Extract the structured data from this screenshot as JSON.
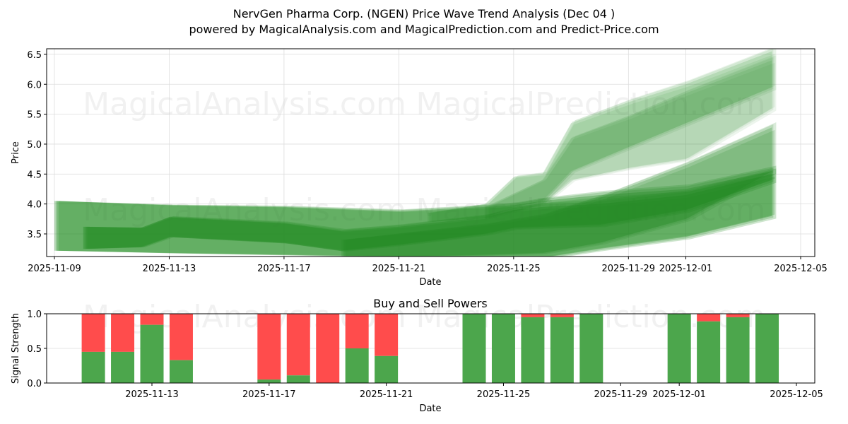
{
  "header": {
    "title": "NervGen Pharma Corp. (NGEN) Price Wave Trend Analysis (Dec 04 )",
    "subtitle": "powered by MagicalAnalysis.com and MagicalPrediction.com and Predict-Price.com"
  },
  "watermarks": [
    "MagicalAnalysis.com",
    "MagicalPrediction.com"
  ],
  "colors": {
    "wave": "#228B22",
    "buy": "#4CA64C",
    "sell": "#FF4C4C",
    "grid": "#dddddd"
  },
  "chart_data": [
    {
      "type": "area",
      "title": "NervGen Pharma Corp. (NGEN) Price Wave Trend Analysis (Dec 04 )",
      "xlabel": "Date",
      "ylabel": "Price",
      "x_ticks": [
        "2025-11-09",
        "2025-11-13",
        "2025-11-17",
        "2025-11-21",
        "2025-11-25",
        "2025-11-29",
        "2025-12-01",
        "2025-12-05"
      ],
      "y_ticks": [
        "3.5",
        "4.0",
        "4.5",
        "5.0",
        "5.5",
        "6.0",
        "6.5"
      ],
      "ylim": [
        3.1,
        6.6
      ],
      "xlim": [
        "2025-11-09",
        "2025-12-05"
      ],
      "grid": true,
      "series": [
        {
          "name": "band-wide-1",
          "opacity": 0.55,
          "x": [
            "2025-11-09",
            "2025-11-13",
            "2025-11-17",
            "2025-11-21",
            "2025-11-24",
            "2025-11-25",
            "2025-11-26",
            "2025-11-28",
            "2025-12-01",
            "2025-12-04"
          ],
          "upper": [
            4.05,
            3.98,
            3.95,
            3.88,
            3.95,
            3.98,
            4.05,
            4.15,
            4.25,
            4.55
          ],
          "lower": [
            3.22,
            3.18,
            3.15,
            3.12,
            3.1,
            3.1,
            3.1,
            3.25,
            3.45,
            3.8
          ]
        },
        {
          "name": "band-core",
          "opacity": 0.6,
          "x": [
            "2025-11-10",
            "2025-11-12",
            "2025-11-13",
            "2025-11-17",
            "2025-11-19",
            "2025-11-21",
            "2025-11-24",
            "2025-11-25",
            "2025-11-26",
            "2025-11-28",
            "2025-12-01",
            "2025-12-04"
          ],
          "upper": [
            3.62,
            3.6,
            3.78,
            3.68,
            3.55,
            3.62,
            3.78,
            3.9,
            3.95,
            4.0,
            4.15,
            4.5
          ],
          "lower": [
            3.25,
            3.28,
            3.45,
            3.35,
            3.22,
            3.32,
            3.5,
            3.6,
            3.62,
            3.65,
            3.9,
            4.4
          ]
        },
        {
          "name": "band-lower-rise",
          "opacity": 0.4,
          "x": [
            "2025-11-19",
            "2025-11-21",
            "2025-11-24",
            "2025-11-26",
            "2025-11-28",
            "2025-12-01",
            "2025-12-04"
          ],
          "upper": [
            3.4,
            3.5,
            3.65,
            3.8,
            4.1,
            4.65,
            5.28
          ],
          "lower": [
            3.1,
            3.12,
            3.15,
            3.18,
            3.35,
            3.75,
            4.55
          ]
        },
        {
          "name": "band-upper-fan",
          "opacity": 0.25,
          "x": [
            "2025-11-22",
            "2025-11-24",
            "2025-11-25",
            "2025-11-26",
            "2025-11-27",
            "2025-11-29",
            "2025-12-01",
            "2025-12-04"
          ],
          "upper": [
            3.85,
            4.0,
            4.45,
            4.5,
            5.35,
            5.7,
            6.0,
            6.55
          ],
          "lower": [
            3.7,
            3.78,
            3.95,
            4.05,
            4.55,
            4.95,
            5.35,
            5.95
          ]
        },
        {
          "name": "band-upper-fan-2",
          "opacity": 0.2,
          "x": [
            "2025-11-24",
            "2025-11-26",
            "2025-11-27",
            "2025-11-29",
            "2025-12-01",
            "2025-12-04"
          ],
          "upper": [
            3.95,
            4.4,
            5.1,
            5.45,
            5.85,
            6.4
          ],
          "lower": [
            3.75,
            4.0,
            4.4,
            4.6,
            4.75,
            5.6
          ]
        }
      ]
    },
    {
      "type": "bar",
      "title": "Buy and Sell Powers",
      "xlabel": "Date",
      "ylabel": "Signal Strength",
      "ylim": [
        0.0,
        1.0
      ],
      "y_ticks": [
        "0.0",
        "0.5",
        "1.0"
      ],
      "x_ticks": [
        "2025-11-13",
        "2025-11-17",
        "2025-11-21",
        "2025-11-25",
        "2025-11-29",
        "2025-12-01",
        "2025-12-05"
      ],
      "grid": true,
      "categories": [
        "2025-11-11",
        "2025-11-12",
        "2025-11-13",
        "2025-11-14",
        "2025-11-17",
        "2025-11-18",
        "2025-11-19",
        "2025-11-20",
        "2025-11-21",
        "2025-11-24",
        "2025-11-25",
        "2025-11-26",
        "2025-11-27",
        "2025-11-28",
        "2025-12-01",
        "2025-12-02",
        "2025-12-03",
        "2025-12-04"
      ],
      "series": [
        {
          "name": "Buy",
          "values": [
            0.45,
            0.45,
            0.84,
            0.33,
            0.05,
            0.11,
            0.0,
            0.5,
            0.39,
            1.0,
            1.0,
            0.95,
            0.95,
            1.0,
            1.0,
            0.89,
            0.95,
            1.0
          ]
        },
        {
          "name": "Sell",
          "values": [
            0.55,
            0.55,
            0.16,
            0.67,
            0.95,
            0.89,
            1.0,
            0.5,
            0.61,
            0.0,
            0.0,
            0.05,
            0.05,
            0.0,
            0.0,
            0.11,
            0.05,
            0.0
          ]
        }
      ]
    }
  ]
}
